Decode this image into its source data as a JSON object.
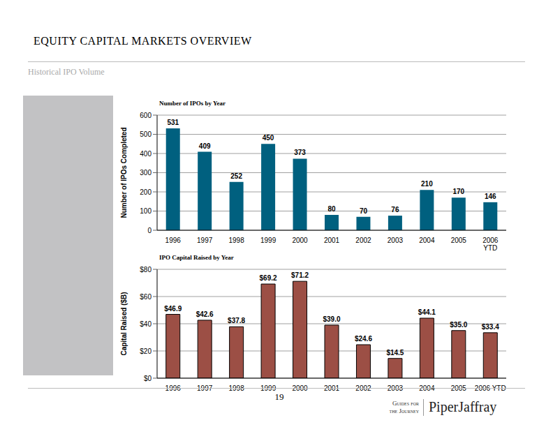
{
  "header": {
    "title": "EQUITY CAPITAL MARKETS OVERVIEW",
    "subtitle": "Historical IPO Volume"
  },
  "footer": {
    "page": "19",
    "tagline": [
      "Guides for",
      "the Journey"
    ],
    "brand": "PiperJaffray"
  },
  "chart_data": [
    {
      "type": "bar",
      "title": "Number of IPOs by Year",
      "y_label": "Number of IPOs Completed",
      "categories": [
        "1996",
        "1997",
        "1998",
        "1999",
        "2000",
        "2001",
        "2002",
        "2003",
        "2004",
        "2005",
        "2006 YTD"
      ],
      "values": [
        531,
        409,
        252,
        450,
        373,
        80,
        70,
        76,
        210,
        170,
        146
      ],
      "color": "#00607f",
      "ylim": [
        0,
        600
      ],
      "yticks": [
        0,
        100,
        200,
        300,
        400,
        500,
        600
      ],
      "grid": true,
      "data_labels": true
    },
    {
      "type": "bar",
      "title": "IPO Capital Raised by Year",
      "y_label": "Capital Raised ($B)",
      "categories": [
        "1996",
        "1997",
        "1998",
        "1999",
        "2000",
        "2001",
        "2002",
        "2003",
        "2004",
        "2005",
        "2006 YTD"
      ],
      "values": [
        46.9,
        42.6,
        37.8,
        69.2,
        71.2,
        39.0,
        24.6,
        14.5,
        44.1,
        35.0,
        33.4
      ],
      "value_labels": [
        "$46.9",
        "$42.6",
        "$37.8",
        "$69.2",
        "$71.2",
        "$39.0",
        "$24.6",
        "$14.5",
        "$44.1",
        "$35.0",
        "$33.4"
      ],
      "color": "#9c4f45",
      "ylim": [
        0,
        80
      ],
      "yticks": [
        {
          "value": 0,
          "label": "$0"
        },
        {
          "value": 20,
          "label": "$20"
        },
        {
          "value": 40,
          "label": "$40"
        },
        {
          "value": 60,
          "label": "$60"
        },
        {
          "value": 80,
          "label": "$80"
        }
      ],
      "grid": true,
      "data_labels": true
    }
  ]
}
